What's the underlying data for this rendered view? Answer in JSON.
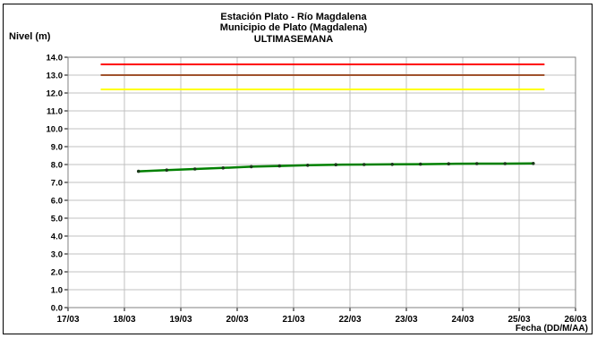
{
  "chart_data": {
    "type": "line",
    "title": [
      "Estación Plato - Río Magdalena",
      "Municipio de Plato (Magdalena)",
      "ULTIMASEMANA"
    ],
    "ylabel": "Nivel (m)",
    "xlabel": "Fecha (DD/M/AA)",
    "ylim": [
      0,
      14
    ],
    "y_ticks": [
      "0.0",
      "1.0",
      "2.0",
      "3.0",
      "4.0",
      "5.0",
      "6.0",
      "7.0",
      "8.0",
      "9.0",
      "10.0",
      "11.0",
      "12.0",
      "13.0",
      "14.0"
    ],
    "x_ticks": [
      "17/03",
      "18/03",
      "19/03",
      "20/03",
      "21/03",
      "22/03",
      "23/03",
      "24/03",
      "25/03",
      "26/03"
    ],
    "x_range_days": [
      17,
      26
    ],
    "grid": true,
    "thresholds": [
      {
        "color": "#ff0000",
        "value": 13.6,
        "x_from": 17.58,
        "x_to": 25.45
      },
      {
        "color": "#a0522d",
        "value": 13.0,
        "x_from": 17.58,
        "x_to": 25.45
      },
      {
        "color": "#ffff00",
        "value": 12.2,
        "x_from": 17.58,
        "x_to": 25.45
      }
    ],
    "series": [
      {
        "color": "#008000",
        "x": [
          18.25,
          18.75,
          19.25,
          19.75,
          20.25,
          20.75,
          21.25,
          21.75,
          22.25,
          22.75,
          23.25,
          23.75,
          24.25,
          24.75,
          25.25
        ],
        "y": [
          7.62,
          7.69,
          7.75,
          7.81,
          7.88,
          7.92,
          7.96,
          7.99,
          8.0,
          8.01,
          8.02,
          8.04,
          8.05,
          8.05,
          8.06
        ]
      }
    ]
  }
}
